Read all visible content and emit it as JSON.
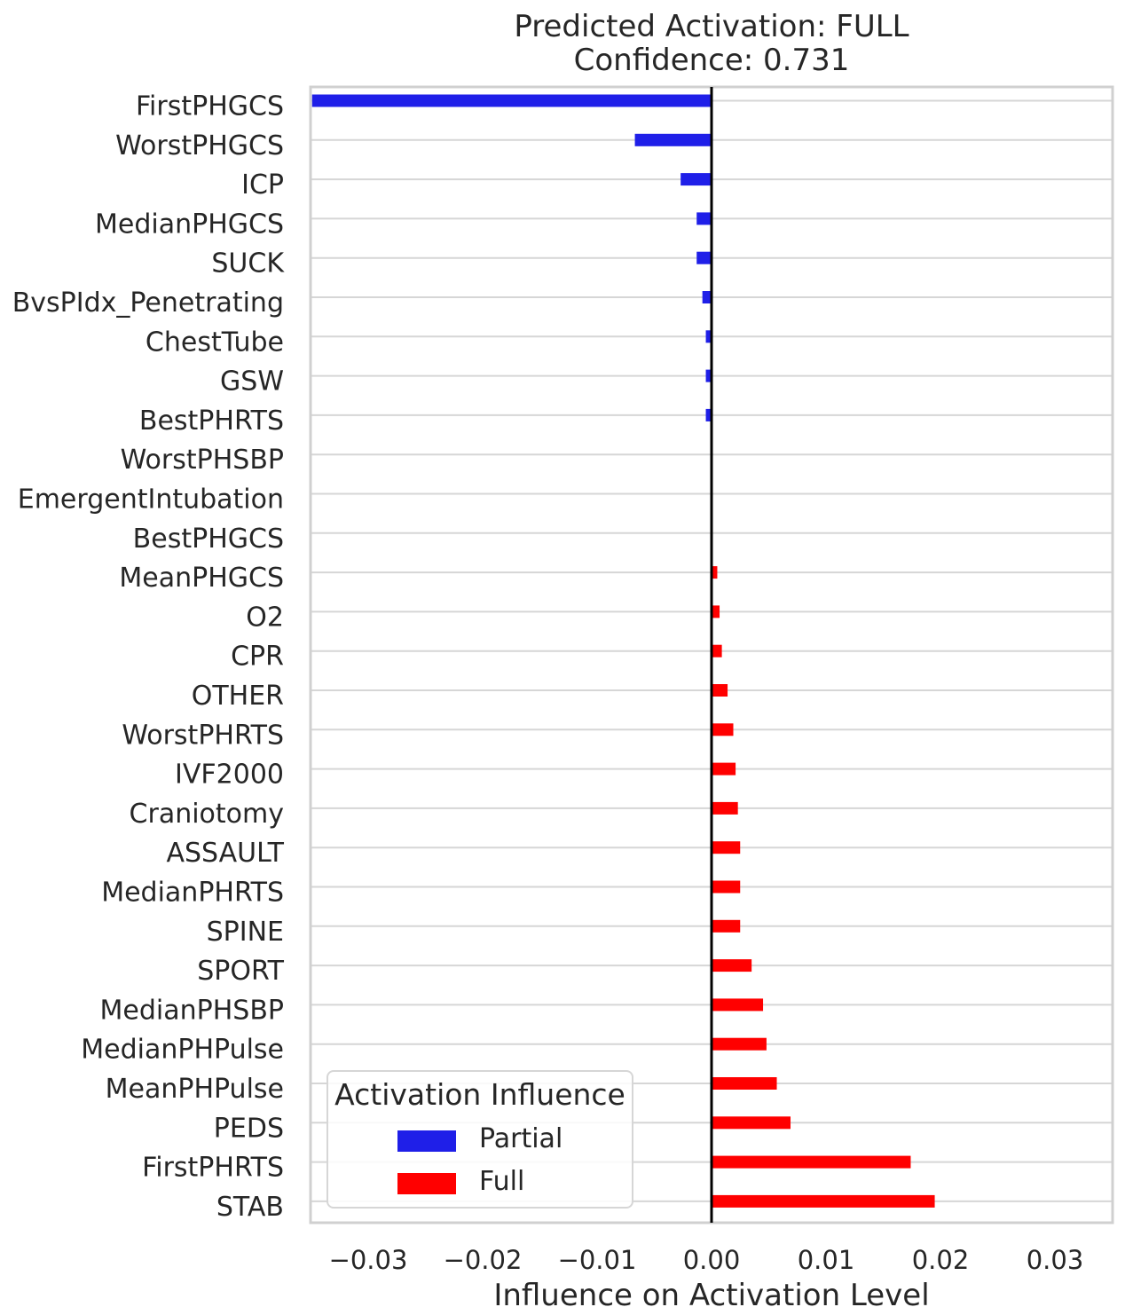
{
  "chart_data": {
    "type": "bar",
    "orientation": "horizontal",
    "title": "Predicted Activation: FULL",
    "subtitle": "Confidence: 0.731",
    "xlabel": "Influence on Activation Level",
    "ylabel": "",
    "xlim": [
      -0.035,
      0.035
    ],
    "xticks": [
      -0.03,
      -0.02,
      -0.01,
      0.0,
      0.01,
      0.02,
      0.03
    ],
    "xtick_labels": [
      "−0.03",
      "−0.02",
      "−0.01",
      "0.00",
      "0.01",
      "0.02",
      "0.03"
    ],
    "grid": true,
    "legend": {
      "title": "Activation Influence",
      "placement": "lower-left",
      "entries": [
        {
          "name": "Partial",
          "color": "#1f1fe8"
        },
        {
          "name": "Full",
          "color": "#ff0000"
        }
      ]
    },
    "colors": {
      "Partial": "#1f1fe8",
      "Full": "#ff0000",
      "zero_line": "#000000"
    },
    "categories": [
      "FirstPHGCS",
      "WorstPHGCS",
      "ICP",
      "MedianPHGCS",
      "SUCK",
      "BvsPIdx_Penetrating",
      "ChestTube",
      "GSW",
      "BestPHRTS",
      "WorstPHSBP",
      "EmergentIntubation",
      "BestPHGCS",
      "MeanPHGCS",
      "O2",
      "CPR",
      "OTHER",
      "WorstPHRTS",
      "IVF2000",
      "Craniotomy",
      "ASSAULT",
      "MedianPHRTS",
      "SPINE",
      "SPORT",
      "MedianPHSBP",
      "MedianPHPulse",
      "MeanPHPulse",
      "PEDS",
      "FirstPHRTS",
      "STAB"
    ],
    "values": [
      -0.0349,
      -0.0067,
      -0.0027,
      -0.0013,
      -0.0013,
      -0.0008,
      -0.0005,
      -0.0005,
      -0.0005,
      0.0,
      0.0,
      0.0,
      0.0005,
      0.0007,
      0.0009,
      0.0014,
      0.0019,
      0.0021,
      0.0023,
      0.0025,
      0.0025,
      0.0025,
      0.0035,
      0.0045,
      0.0048,
      0.0057,
      0.0069,
      0.0174,
      0.0195
    ]
  }
}
